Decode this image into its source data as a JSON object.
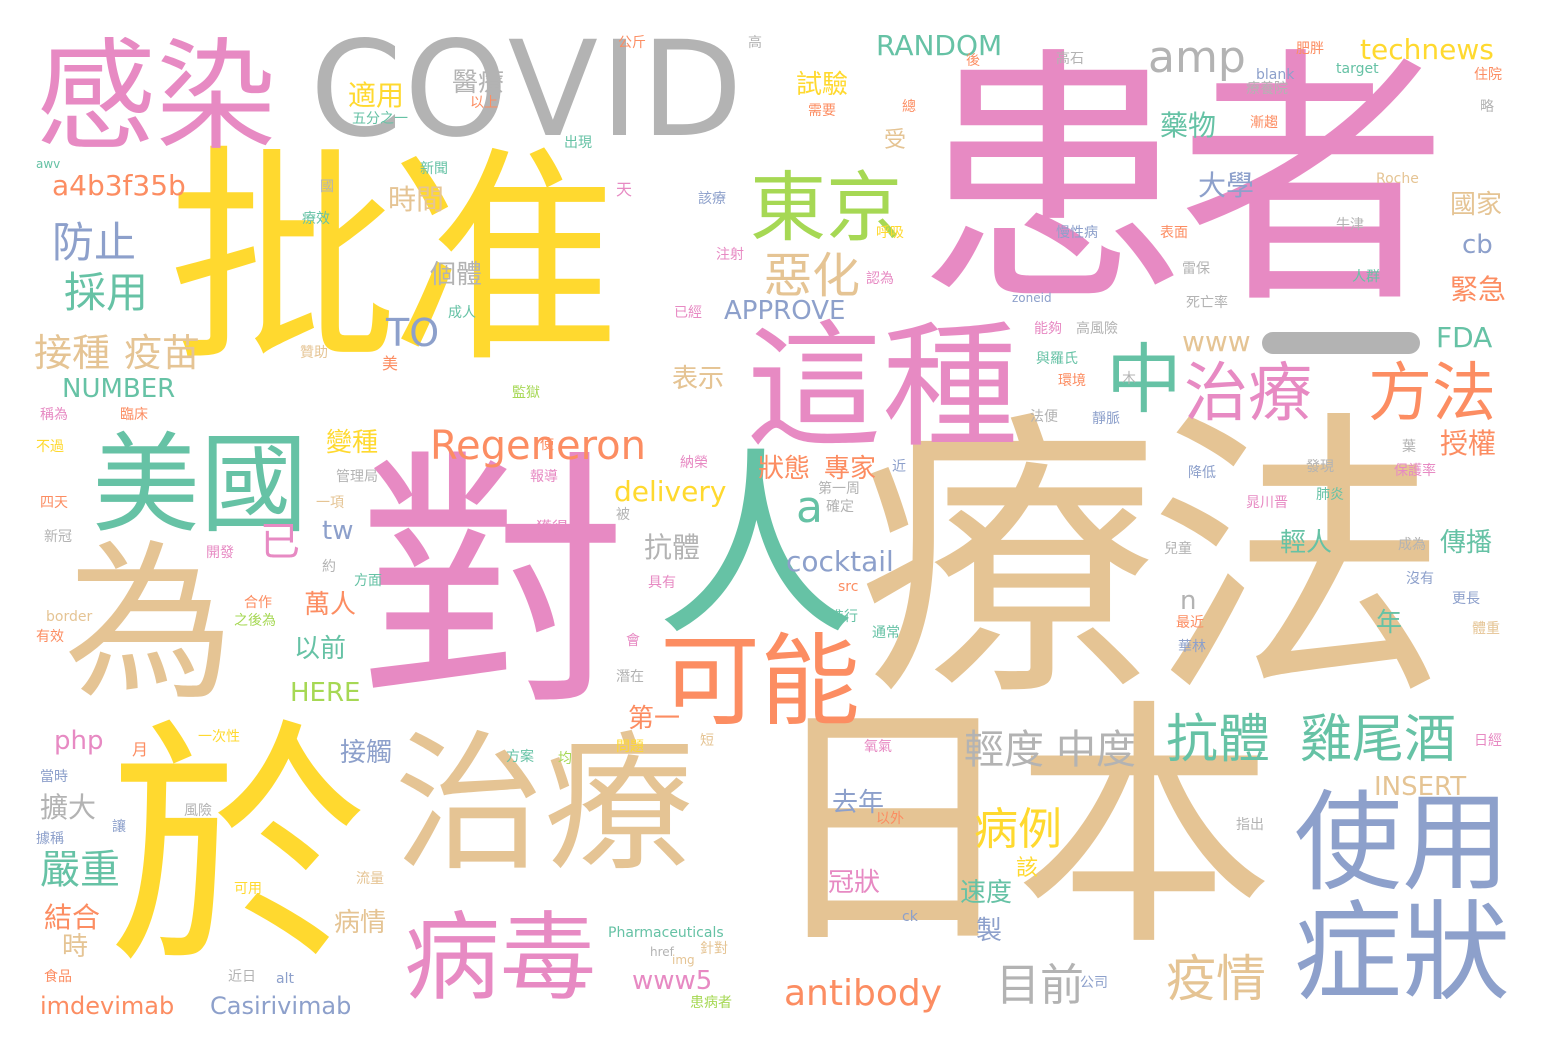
{
  "palette": {
    "pink": "#e78ac3",
    "yellow": "#ffd92f",
    "tan": "#e5c494",
    "gray": "#b3b3b3",
    "teal": "#66c2a5",
    "orange": "#fc8d62",
    "blue": "#8da0cb",
    "green": "#a6d854"
  },
  "words": [
    {
      "text": "患者",
      "color": "pink"
    },
    {
      "text": "療法",
      "color": "tan"
    },
    {
      "text": "批准",
      "color": "yellow"
    },
    {
      "text": "對",
      "color": "pink"
    },
    {
      "text": "日本",
      "color": "tan"
    },
    {
      "text": "於",
      "color": "yellow"
    },
    {
      "text": "COVID",
      "color": "gray"
    },
    {
      "text": "感染",
      "color": "pink"
    },
    {
      "text": "人",
      "color": "teal"
    },
    {
      "text": "為",
      "color": "tan"
    },
    {
      "text": "治療",
      "color": "tan"
    },
    {
      "text": "這種",
      "color": "pink"
    },
    {
      "text": "美國",
      "color": "teal"
    },
    {
      "text": "使用",
      "color": "blue"
    },
    {
      "text": "症狀",
      "color": "blue"
    },
    {
      "text": "病毒",
      "color": "pink"
    },
    {
      "text": "可能",
      "color": "orange"
    },
    {
      "text": "東京",
      "color": "green"
    },
    {
      "text": "中",
      "color": "teal"
    },
    {
      "text": "治療",
      "color": "pink"
    },
    {
      "text": "方法",
      "color": "orange"
    },
    {
      "text": "抗體",
      "color": "teal"
    },
    {
      "text": "雞尾酒",
      "color": "teal"
    },
    {
      "text": "Regeneron",
      "color": "orange"
    },
    {
      "text": "antibody",
      "color": "orange"
    },
    {
      "text": "目前",
      "color": "gray"
    },
    {
      "text": "疫情",
      "color": "tan"
    },
    {
      "text": "輕度",
      "color": "gray"
    },
    {
      "text": "中度",
      "color": "gray"
    },
    {
      "text": "病例",
      "color": "yellow"
    },
    {
      "text": "嚴重",
      "color": "teal"
    },
    {
      "text": "接種",
      "color": "tan"
    },
    {
      "text": "疫苗",
      "color": "tan"
    },
    {
      "text": "防止",
      "color": "blue"
    },
    {
      "text": "採用",
      "color": "teal"
    },
    {
      "text": "惡化",
      "color": "tan"
    },
    {
      "text": "amp",
      "color": "gray"
    },
    {
      "text": "已",
      "color": "pink"
    },
    {
      "text": "a",
      "color": "teal"
    },
    {
      "text": "TO",
      "color": "blue"
    },
    {
      "text": "醫療",
      "color": "gray"
    },
    {
      "text": "適用",
      "color": "yellow"
    },
    {
      "text": "試驗",
      "color": "yellow"
    },
    {
      "text": "藥物",
      "color": "teal"
    },
    {
      "text": "大學",
      "color": "blue"
    },
    {
      "text": "時間",
      "color": "tan"
    },
    {
      "text": "個體",
      "color": "gray"
    },
    {
      "text": "a4b3f35b",
      "color": "orange"
    },
    {
      "text": "RANDOM",
      "color": "teal"
    },
    {
      "text": "technews",
      "color": "yellow"
    },
    {
      "text": "國家",
      "color": "tan"
    },
    {
      "text": "cb",
      "color": "blue"
    },
    {
      "text": "緊急",
      "color": "orange"
    },
    {
      "text": "FDA",
      "color": "teal"
    },
    {
      "text": "www",
      "color": "tan"
    },
    {
      "text": "授權",
      "color": "orange"
    },
    {
      "text": "NUMBER",
      "color": "teal"
    },
    {
      "text": "表示",
      "color": "tan"
    },
    {
      "text": "APPROVE",
      "color": "blue"
    },
    {
      "text": "變種",
      "color": "yellow"
    },
    {
      "text": "狀態",
      "color": "orange"
    },
    {
      "text": "專家",
      "color": "orange"
    },
    {
      "text": "delivery",
      "color": "yellow"
    },
    {
      "text": "tw",
      "color": "blue"
    },
    {
      "text": "抗體",
      "color": "gray"
    },
    {
      "text": "cocktail",
      "color": "blue"
    },
    {
      "text": "萬人",
      "color": "orange"
    },
    {
      "text": "以前",
      "color": "teal"
    },
    {
      "text": "HERE",
      "color": "green"
    },
    {
      "text": "n",
      "color": "gray"
    },
    {
      "text": "傳播",
      "color": "teal"
    },
    {
      "text": "輕人",
      "color": "teal"
    },
    {
      "text": "年",
      "color": "teal"
    },
    {
      "text": "第一",
      "color": "orange"
    },
    {
      "text": "php",
      "color": "pink"
    },
    {
      "text": "接觸",
      "color": "blue"
    },
    {
      "text": "擴大",
      "color": "gray"
    },
    {
      "text": "去年",
      "color": "blue"
    },
    {
      "text": "INSERT",
      "color": "tan"
    },
    {
      "text": "結合",
      "color": "orange"
    },
    {
      "text": "時",
      "color": "tan"
    },
    {
      "text": "病情",
      "color": "tan"
    },
    {
      "text": "速度",
      "color": "teal"
    },
    {
      "text": "製",
      "color": "blue"
    },
    {
      "text": "冠狀",
      "color": "pink"
    },
    {
      "text": "www5",
      "color": "pink"
    },
    {
      "text": "imdevimab",
      "color": "orange"
    },
    {
      "text": "Casirivimab",
      "color": "blue"
    },
    {
      "text": "該",
      "color": "yellow"
    },
    {
      "text": "受",
      "color": "tan"
    },
    {
      "text": "五分之一",
      "color": "teal"
    },
    {
      "text": "以上",
      "color": "orange"
    },
    {
      "text": "出現",
      "color": "teal"
    },
    {
      "text": "新聞",
      "color": "teal"
    },
    {
      "text": "天",
      "color": "pink"
    },
    {
      "text": "該療",
      "color": "blue"
    },
    {
      "text": "注射",
      "color": "pink"
    },
    {
      "text": "呼吸",
      "color": "yellow"
    },
    {
      "text": "認為",
      "color": "pink"
    },
    {
      "text": "已經",
      "color": "pink"
    },
    {
      "text": "成人",
      "color": "teal"
    },
    {
      "text": "贊助",
      "color": "tan"
    },
    {
      "text": "美",
      "color": "orange"
    },
    {
      "text": "監獄",
      "color": "green"
    },
    {
      "text": "使",
      "color": "orange"
    },
    {
      "text": "報導",
      "color": "pink"
    },
    {
      "text": "獲得",
      "color": "pink"
    },
    {
      "text": "確定",
      "color": "gray"
    },
    {
      "text": "第一周",
      "color": "gray"
    },
    {
      "text": "開發",
      "color": "pink"
    },
    {
      "text": "一項",
      "color": "tan"
    },
    {
      "text": "約",
      "color": "gray"
    },
    {
      "text": "方面",
      "color": "teal"
    },
    {
      "text": "合作",
      "color": "orange"
    },
    {
      "text": "之後為",
      "color": "green"
    },
    {
      "text": "進行",
      "color": "teal"
    },
    {
      "text": "通常",
      "color": "teal"
    },
    {
      "text": "具有",
      "color": "pink"
    },
    {
      "text": "src",
      "color": "orange"
    },
    {
      "text": "會",
      "color": "pink"
    },
    {
      "text": "潛在",
      "color": "gray"
    },
    {
      "text": "問題",
      "color": "yellow"
    },
    {
      "text": "短",
      "color": "tan"
    },
    {
      "text": "氧氣",
      "color": "pink"
    },
    {
      "text": "以外",
      "color": "orange"
    },
    {
      "text": "流量",
      "color": "tan"
    },
    {
      "text": "ck",
      "color": "blue"
    },
    {
      "text": "Pharmaceuticals",
      "color": "teal"
    },
    {
      "text": "針對",
      "color": "tan"
    },
    {
      "text": "href",
      "color": "gray"
    },
    {
      "text": "img",
      "color": "tan"
    },
    {
      "text": "近日",
      "color": "gray"
    },
    {
      "text": "alt",
      "color": "blue"
    },
    {
      "text": "患病者",
      "color": "green"
    },
    {
      "text": "公司",
      "color": "blue"
    },
    {
      "text": "可用",
      "color": "yellow"
    },
    {
      "text": "風險",
      "color": "gray"
    },
    {
      "text": "方案",
      "color": "teal"
    },
    {
      "text": "均",
      "color": "green"
    },
    {
      "text": "一次性",
      "color": "yellow"
    },
    {
      "text": "月",
      "color": "orange"
    },
    {
      "text": "當時",
      "color": "blue"
    },
    {
      "text": "據稱",
      "color": "blue"
    },
    {
      "text": "讓",
      "color": "blue"
    },
    {
      "text": "食品",
      "color": "orange"
    },
    {
      "text": "有效",
      "color": "orange"
    },
    {
      "text": "border",
      "color": "tan"
    },
    {
      "text": "新冠",
      "color": "gray"
    },
    {
      "text": "四天",
      "color": "orange"
    },
    {
      "text": "不過",
      "color": "yellow"
    },
    {
      "text": "稱為",
      "color": "pink"
    },
    {
      "text": "臨床",
      "color": "orange"
    },
    {
      "text": "awv",
      "color": "teal"
    },
    {
      "text": "管理局",
      "color": "gray"
    },
    {
      "text": "納榮",
      "color": "pink"
    },
    {
      "text": "被",
      "color": "gray"
    },
    {
      "text": "公斤",
      "color": "orange"
    },
    {
      "text": "高",
      "color": "gray"
    },
    {
      "text": "後",
      "color": "orange"
    },
    {
      "text": "需要",
      "color": "orange"
    },
    {
      "text": "總",
      "color": "orange"
    },
    {
      "text": "肥胖",
      "color": "orange"
    },
    {
      "text": "高石",
      "color": "gray"
    },
    {
      "text": "blank",
      "color": "blue"
    },
    {
      "text": "target",
      "color": "teal"
    },
    {
      "text": "住院",
      "color": "orange"
    },
    {
      "text": "療養院",
      "color": "gray"
    },
    {
      "text": "漸趨",
      "color": "orange"
    },
    {
      "text": "略",
      "color": "gray"
    },
    {
      "text": "Roche",
      "color": "tan"
    },
    {
      "text": "牛津",
      "color": "gray"
    },
    {
      "text": "慢性病",
      "color": "blue"
    },
    {
      "text": "表面",
      "color": "orange"
    },
    {
      "text": "雷保",
      "color": "gray"
    },
    {
      "text": "人群",
      "color": "teal"
    },
    {
      "text": "死亡率",
      "color": "gray"
    },
    {
      "text": "zoneid",
      "color": "blue"
    },
    {
      "text": "能夠",
      "color": "pink"
    },
    {
      "text": "高風險",
      "color": "gray"
    },
    {
      "text": "與羅氏",
      "color": "teal"
    },
    {
      "text": "環境",
      "color": "orange"
    },
    {
      "text": "木",
      "color": "gray"
    },
    {
      "text": "法便",
      "color": "gray"
    },
    {
      "text": "靜脈",
      "color": "blue"
    },
    {
      "text": "葉",
      "color": "gray"
    },
    {
      "text": "發現",
      "color": "gray"
    },
    {
      "text": "降低",
      "color": "blue"
    },
    {
      "text": "近",
      "color": "blue"
    },
    {
      "text": "保護率",
      "color": "pink"
    },
    {
      "text": "肺炎",
      "color": "teal"
    },
    {
      "text": "晁川晋",
      "color": "pink"
    },
    {
      "text": "兒童",
      "color": "gray"
    },
    {
      "text": "成為",
      "color": "gray"
    },
    {
      "text": "沒有",
      "color": "blue"
    },
    {
      "text": "更長",
      "color": "blue"
    },
    {
      "text": "最近",
      "color": "orange"
    },
    {
      "text": "華林",
      "color": "blue"
    },
    {
      "text": "體重",
      "color": "tan"
    },
    {
      "text": "日經",
      "color": "pink"
    },
    {
      "text": "指出",
      "color": "gray"
    },
    {
      "text": "療效",
      "color": "teal"
    },
    {
      "text": "國",
      "color": "gray"
    },
    {
      "text": "表示",
      "color": "tan"
    }
  ]
}
